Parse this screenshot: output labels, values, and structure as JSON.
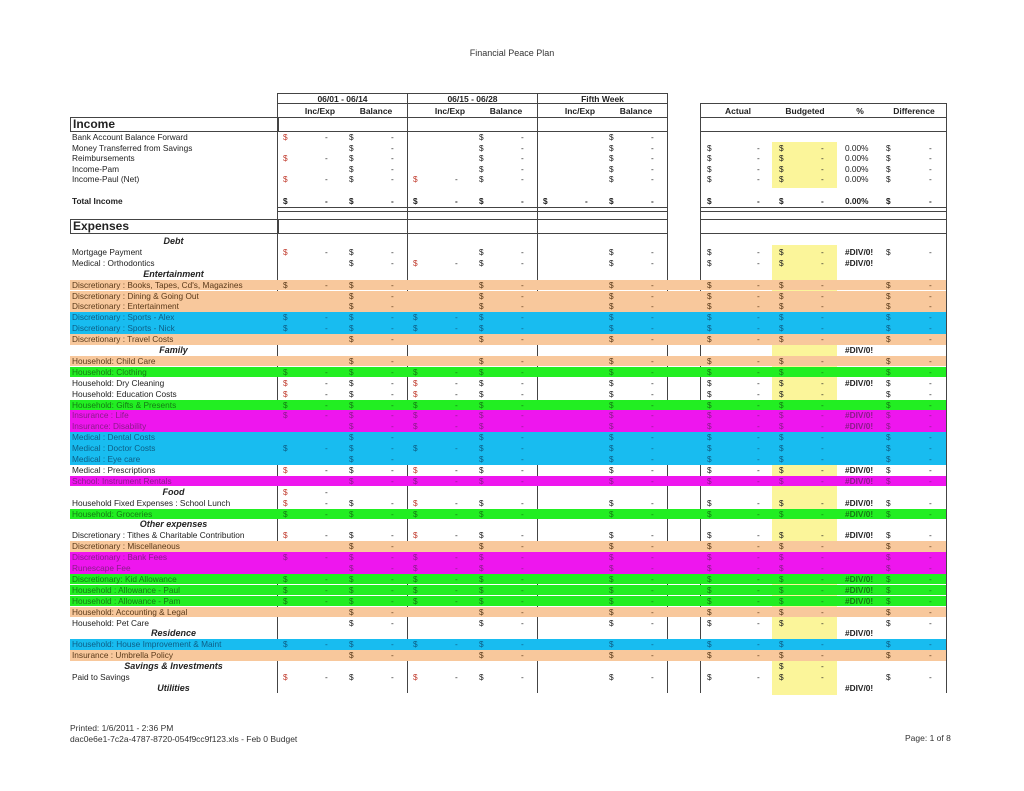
{
  "title": "Financial Peace Plan",
  "currency_symbol": "$",
  "header": {
    "periods": [
      "06/01 - 06/14",
      "06/15 - 06/28",
      "Fifth Week"
    ],
    "sub": [
      "Inc/Exp",
      "Balance"
    ],
    "summary": [
      "Actual",
      "Budgeted",
      "%",
      "Difference"
    ]
  },
  "colors": {
    "orange": "#f8c89c",
    "blue": "#18bcf0",
    "green": "#22ee22",
    "magenta": "#ee16ee",
    "budget_highlight": "#fbf59a",
    "income_expense_symbol": "#c0392b"
  },
  "income": {
    "heading": "Income",
    "rows": [
      {
        "label": "Bank Account Balance Forward",
        "cells": [
          "-",
          "-",
          null,
          "-",
          null,
          "-",
          null,
          null,
          null,
          null
        ]
      },
      {
        "label": "Money Transferred from Savings",
        "cells": [
          null,
          "-",
          null,
          "-",
          null,
          "-",
          "-",
          "-",
          "0.00%",
          "-"
        ]
      },
      {
        "label": "Reimbursements",
        "cells": [
          "-",
          "-",
          null,
          "-",
          null,
          "-",
          "-",
          "-",
          "0.00%",
          "-"
        ]
      },
      {
        "label": "Income-Pam",
        "cells": [
          null,
          "-",
          null,
          "-",
          null,
          "-",
          "-",
          "-",
          "0.00%",
          "-"
        ]
      },
      {
        "label": "Income-Paul (Net)",
        "cells": [
          "-",
          "-",
          "-",
          "-",
          null,
          "-",
          "-",
          "-",
          "0.00%",
          "-"
        ]
      },
      {
        "label": "",
        "cells": []
      },
      {
        "label": "Total Income",
        "type": "total",
        "cells": [
          "-",
          "-",
          "-",
          "-",
          "-",
          "-",
          "-",
          "-",
          "0.00%",
          "-"
        ]
      }
    ]
  },
  "expenses": {
    "heading": "Expenses",
    "rows": [
      {
        "label": "Debt",
        "type": "cat",
        "cells": []
      },
      {
        "label": "Mortgage Payment",
        "cells": [
          "-",
          "-",
          null,
          "-",
          null,
          "-",
          "-",
          "-",
          "#DIV/0!",
          "-"
        ]
      },
      {
        "label": "Medical : Orthodontics",
        "cells": [
          null,
          "-",
          "-",
          "-",
          null,
          "-",
          "-",
          "-",
          "#DIV/0!",
          null
        ]
      },
      {
        "label": "Entertainment",
        "type": "cat",
        "cells": []
      },
      {
        "label": "Discretionary : Books, Tapes, Cd's, Magazines",
        "color": "orange",
        "cells": [
          "-",
          "-",
          null,
          "-",
          null,
          "-",
          "-",
          "-",
          null,
          "-"
        ]
      },
      {
        "label": "Discretionary : Dining & Going Out",
        "color": "orange",
        "cells": [
          null,
          "-",
          null,
          "-",
          null,
          "-",
          "-",
          "-",
          null,
          "-"
        ]
      },
      {
        "label": "Discretionary : Entertainment",
        "color": "orange",
        "cells": [
          null,
          "-",
          null,
          "-",
          null,
          "-",
          "-",
          "-",
          null,
          "-"
        ]
      },
      {
        "label": "Discretionary : Sports - Alex",
        "color": "blue",
        "cells": [
          "-",
          "-",
          "-",
          "-",
          null,
          "-",
          "-",
          "-",
          null,
          "-"
        ]
      },
      {
        "label": "Discretionary : Sports - Nick",
        "color": "blue",
        "cells": [
          "-",
          "-",
          "-",
          "-",
          null,
          "-",
          "-",
          "-",
          null,
          "-"
        ]
      },
      {
        "label": "Discretionary : Travel Costs",
        "color": "orange",
        "cells": [
          null,
          "-",
          null,
          "-",
          null,
          "-",
          "-",
          "-",
          null,
          "-"
        ]
      },
      {
        "label": "Family",
        "type": "cat",
        "cells": [
          null,
          null,
          null,
          null,
          null,
          null,
          null,
          null,
          "#DIV/0!",
          null
        ]
      },
      {
        "label": "Household: Child Care",
        "color": "orange",
        "cells": [
          null,
          "-",
          null,
          "-",
          null,
          "-",
          "-",
          "-",
          null,
          "-"
        ]
      },
      {
        "label": "Household: Clothing",
        "color": "green",
        "cells": [
          "-",
          "-",
          "-",
          "-",
          null,
          "-",
          "-",
          "-",
          null,
          "-"
        ]
      },
      {
        "label": "Household: Dry Cleaning",
        "cells": [
          "-",
          "-",
          "-",
          "-",
          null,
          "-",
          "-",
          "-",
          "#DIV/0!",
          "-"
        ]
      },
      {
        "label": "Household: Education Costs",
        "cells": [
          "-",
          "-",
          "-",
          "-",
          null,
          "-",
          "-",
          "-",
          null,
          "-"
        ]
      },
      {
        "label": "Household: Gifts & Presents",
        "color": "green",
        "cells": [
          "-",
          "-",
          "-",
          "-",
          null,
          "-",
          "-",
          "-",
          null,
          "-"
        ]
      },
      {
        "label": "Insurance : Life",
        "color": "magenta",
        "cells": [
          "-",
          "-",
          "-",
          "-",
          null,
          "-",
          "-",
          "-",
          "#DIV/0!",
          "-"
        ]
      },
      {
        "label": "Insurance: Disability",
        "color": "magenta",
        "cells": [
          null,
          "-",
          "-",
          "-",
          null,
          "-",
          "-",
          "-",
          "#DIV/0!",
          "-"
        ]
      },
      {
        "label": "Medical : Dental Costs",
        "color": "blue",
        "cells": [
          null,
          "-",
          null,
          "-",
          null,
          "-",
          "-",
          "-",
          null,
          "-"
        ]
      },
      {
        "label": "Medical : Doctor Costs",
        "color": "blue",
        "cells": [
          "-",
          "-",
          "-",
          "-",
          null,
          "-",
          "-",
          "-",
          null,
          "-"
        ]
      },
      {
        "label": "Medical : Eye care",
        "color": "blue",
        "cells": [
          null,
          "-",
          null,
          "-",
          null,
          "-",
          "-",
          "-",
          null,
          "-"
        ]
      },
      {
        "label": "Medical : Prescriptions",
        "cells": [
          "-",
          "-",
          "-",
          "-",
          null,
          "-",
          "-",
          "-",
          "#DIV/0!",
          "-"
        ]
      },
      {
        "label": "School: Instrument Rentals",
        "color": "magenta",
        "cells": [
          null,
          "-",
          "-",
          "-",
          null,
          "-",
          "-",
          "-",
          "#DIV/0!",
          "-"
        ]
      },
      {
        "label": "Food",
        "type": "cat",
        "cells": [
          "-",
          null,
          null,
          null,
          null,
          null,
          null,
          null,
          null,
          null
        ]
      },
      {
        "label": "Household Fixed Expenses : School Lunch",
        "cells": [
          "-",
          "-",
          "-",
          "-",
          null,
          "-",
          "-",
          "-",
          "#DIV/0!",
          "-"
        ]
      },
      {
        "label": "Household: Groceries",
        "color": "green",
        "cells": [
          "-",
          "-",
          "-",
          "-",
          null,
          "-",
          "-",
          "-",
          "#DIV/0!",
          "-"
        ]
      },
      {
        "label": "Other expenses",
        "type": "cat",
        "cells": []
      },
      {
        "label": "Discretionary : Tithes & Charitable Contribution",
        "cells": [
          "-",
          "-",
          "-",
          "-",
          null,
          "-",
          "-",
          "-",
          "#DIV/0!",
          "-"
        ]
      },
      {
        "label": "Discretionary : Miscellaneous",
        "color": "orange",
        "cells": [
          null,
          "-",
          null,
          "-",
          null,
          "-",
          "-",
          "-",
          null,
          "-"
        ]
      },
      {
        "label": "Discretionary : Bank Fees",
        "color": "magenta",
        "cells": [
          "-",
          "-",
          "-",
          "-",
          null,
          "-",
          "-",
          "-",
          null,
          "-"
        ]
      },
      {
        "label": "Runescape Fee",
        "color": "magenta",
        "cells": [
          null,
          "-",
          "-",
          "-",
          null,
          "-",
          "-",
          "-",
          null,
          "-"
        ]
      },
      {
        "label": "Discretionary: Kid Allowance",
        "color": "green",
        "cells": [
          "-",
          "-",
          "-",
          "-",
          null,
          "-",
          "-",
          "-",
          "#DIV/0!",
          "-"
        ]
      },
      {
        "label": "Household : Allowance - Paul",
        "color": "green",
        "cells": [
          "-",
          "-",
          "-",
          "-",
          null,
          "-",
          "-",
          "-",
          "#DIV/0!",
          "-"
        ]
      },
      {
        "label": "Household : Allowance - Pam",
        "color": "green",
        "cells": [
          "-",
          "-",
          "-",
          "-",
          null,
          "-",
          "-",
          "-",
          "#DIV/0!",
          "-"
        ]
      },
      {
        "label": "Household: Accounting & Legal",
        "color": "orange",
        "cells": [
          null,
          "-",
          null,
          "-",
          null,
          "-",
          "-",
          "-",
          null,
          "-"
        ]
      },
      {
        "label": "Household: Pet Care",
        "cells": [
          null,
          "-",
          null,
          "-",
          null,
          "-",
          "-",
          "-",
          null,
          "-"
        ]
      },
      {
        "label": "Residence",
        "type": "cat",
        "cells": [
          null,
          null,
          null,
          null,
          null,
          null,
          null,
          null,
          "#DIV/0!",
          null
        ]
      },
      {
        "label": "Household: House Improvement & Maint",
        "color": "blue",
        "cells": [
          "-",
          "-",
          "-",
          "-",
          null,
          "-",
          "-",
          "-",
          null,
          "-"
        ]
      },
      {
        "label": "Insurance : Umbrella Policy",
        "color": "orange",
        "cells": [
          null,
          "-",
          null,
          "-",
          null,
          "-",
          "-",
          "-",
          null,
          "-"
        ]
      },
      {
        "label": "Savings & Investments",
        "type": "cat",
        "cells": [
          null,
          null,
          null,
          null,
          null,
          null,
          null,
          "-",
          null,
          null
        ]
      },
      {
        "label": "Paid to Savings",
        "cells": [
          "-",
          "-",
          "-",
          "-",
          null,
          "-",
          "-",
          "-",
          null,
          "-"
        ]
      },
      {
        "label": "Utilities",
        "type": "cat",
        "cells": [
          null,
          null,
          null,
          null,
          null,
          null,
          null,
          null,
          "#DIV/0!",
          null
        ]
      }
    ]
  },
  "footer": {
    "printed": "Printed: 1/6/2011 - 2:36 PM",
    "file": "dac0e6e1-7c2a-4787-8720-054f9cc9f123.xls - Feb 0 Budget",
    "page": "Page: 1 of 8"
  }
}
